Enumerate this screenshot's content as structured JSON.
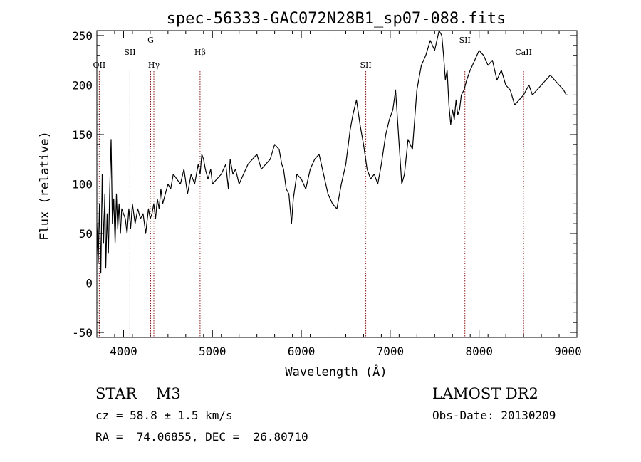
{
  "chart_data": {
    "type": "line",
    "title": "spec-56333-GAC072N28B1_sp07-088.fits",
    "xlabel": "Wavelength (Å)",
    "ylabel": "Flux (relative)",
    "xlim": [
      3700,
      9100
    ],
    "ylim": [
      -55,
      255
    ],
    "xticks": [
      4000,
      5000,
      6000,
      7000,
      8000,
      9000
    ],
    "yticks": [
      -50,
      0,
      50,
      100,
      150,
      200,
      250
    ],
    "grid": false,
    "series": [
      {
        "x": [
          3700,
          3715,
          3730,
          3745,
          3760,
          3775,
          3790,
          3800,
          3815,
          3830,
          3845,
          3860,
          3875,
          3890,
          3905,
          3920,
          3935,
          3950,
          3965,
          3980,
          4000,
          4020,
          4040,
          4060,
          4080,
          4100,
          4130,
          4160,
          4190,
          4220,
          4250,
          4280,
          4300,
          4320,
          4340,
          4360,
          4380,
          4400,
          4420,
          4440,
          4470,
          4500,
          4530,
          4560,
          4600,
          4640,
          4680,
          4720,
          4760,
          4800,
          4840,
          4862,
          4880,
          4900,
          4920,
          4950,
          4980,
          5000,
          5050,
          5100,
          5150,
          5180,
          5200,
          5230,
          5260,
          5300,
          5350,
          5400,
          5450,
          5500,
          5550,
          5600,
          5650,
          5700,
          5750,
          5780,
          5800,
          5830,
          5860,
          5890,
          5910,
          5950,
          6000,
          6050,
          6100,
          6150,
          6200,
          6250,
          6300,
          6350,
          6400,
          6450,
          6500,
          6550,
          6580,
          6620,
          6660,
          6700,
          6740,
          6780,
          6820,
          6860,
          6900,
          6950,
          6990,
          7030,
          7060,
          7100,
          7130,
          7160,
          7200,
          7250,
          7300,
          7350,
          7400,
          7450,
          7500,
          7550,
          7580,
          7600,
          7620,
          7640,
          7660,
          7680,
          7700,
          7720,
          7740,
          7760,
          7780,
          7800,
          7830,
          7860,
          7900,
          7950,
          8000,
          8050,
          8100,
          8150,
          8200,
          8250,
          8300,
          8350,
          8400,
          8450,
          8500,
          8530,
          8560,
          8600,
          8650,
          8700,
          8750,
          8800,
          8850,
          8900,
          8950,
          8980,
          9000
        ],
        "y": [
          60,
          20,
          80,
          10,
          110,
          40,
          90,
          15,
          70,
          30,
          95,
          145,
          60,
          85,
          40,
          90,
          55,
          80,
          50,
          75,
          70,
          65,
          50,
          75,
          55,
          80,
          60,
          75,
          65,
          70,
          50,
          75,
          65,
          70,
          80,
          65,
          85,
          75,
          95,
          80,
          90,
          100,
          95,
          110,
          105,
          100,
          115,
          90,
          110,
          100,
          120,
          110,
          130,
          125,
          115,
          105,
          115,
          100,
          105,
          110,
          120,
          95,
          125,
          110,
          115,
          100,
          110,
          120,
          125,
          130,
          115,
          120,
          125,
          140,
          135,
          120,
          115,
          95,
          90,
          60,
          85,
          110,
          105,
          95,
          115,
          125,
          130,
          110,
          90,
          80,
          75,
          100,
          120,
          155,
          170,
          185,
          160,
          140,
          115,
          105,
          110,
          100,
          120,
          150,
          165,
          175,
          195,
          140,
          100,
          110,
          145,
          135,
          195,
          220,
          230,
          245,
          235,
          255,
          250,
          230,
          205,
          215,
          180,
          160,
          175,
          165,
          185,
          170,
          175,
          190,
          195,
          205,
          215,
          225,
          235,
          230,
          220,
          225,
          205,
          215,
          200,
          195,
          180,
          185,
          190,
          195,
          200,
          190,
          195,
          200,
          205,
          210,
          205,
          200,
          195,
          190,
          190
        ]
      }
    ],
    "lines": [
      {
        "x": 3727,
        "label": "OII"
      },
      {
        "x": 4072,
        "label": "SII"
      },
      {
        "x": 4305,
        "label": "G"
      },
      {
        "x": 4341,
        "label": "Hγ"
      },
      {
        "x": 4861,
        "label": "Hβ"
      },
      {
        "x": 6725,
        "label": "SII"
      },
      {
        "x": 7840,
        "label": "SII"
      },
      {
        "x": 8500,
        "label": "CaII"
      }
    ]
  },
  "info": {
    "object": "STAR    M3",
    "survey": "LAMOST DR2",
    "cz": "cz = 58.8 ± 1.5 km/s",
    "obs_date": "Obs-Date: 20130209",
    "radec": "RA =  74.06855, DEC =  26.80710"
  },
  "colors": {
    "axis": "#000000",
    "spectrum": "#000000",
    "line_marker": "#8b1a1a"
  }
}
